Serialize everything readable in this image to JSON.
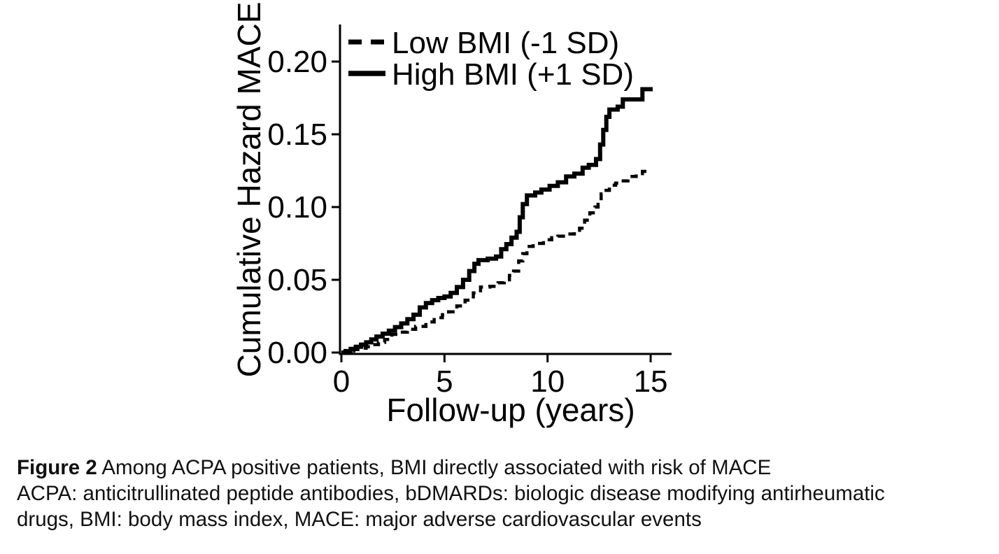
{
  "figure": {
    "caption_bold": "Figure 2",
    "caption_line1_rest": " Among ACPA positive patients, BMI directly associated with risk of MACE",
    "caption_line2": "ACPA: anticitrullinated peptide antibodies, bDMARDs: biologic disease modifying antirheumatic",
    "caption_line3": "drugs, BMI: body mass index, MACE: major adverse cardiovascular events"
  },
  "chart_data": {
    "type": "line",
    "subtype": "step-after cumulative hazard curves (Kaplan-Meier style)",
    "title": "",
    "xlabel": "Follow-up (years)",
    "ylabel": "Cumulative Hazard MACE",
    "xlim": [
      0,
      16
    ],
    "ylim": [
      0,
      0.21
    ],
    "x_ticks": [
      {
        "value": 0,
        "label": "0"
      },
      {
        "value": 5,
        "label": "5"
      },
      {
        "value": 10,
        "label": "10"
      },
      {
        "value": 15,
        "label": "15"
      }
    ],
    "y_ticks": [
      {
        "value": 0.0,
        "label": "0.00"
      },
      {
        "value": 0.05,
        "label": "0.05"
      },
      {
        "value": 0.1,
        "label": "0.10"
      },
      {
        "value": 0.15,
        "label": "0.15"
      },
      {
        "value": 0.2,
        "label": "0.20"
      }
    ],
    "grid": false,
    "legend_position": "top-left-inside",
    "line_color": "#000000",
    "series": [
      {
        "name": "Low BMI (-1 SD)",
        "style": "dashed",
        "points": [
          [
            0,
            0
          ],
          [
            0.3,
            0.001
          ],
          [
            0.6,
            0.002
          ],
          [
            0.9,
            0.003
          ],
          [
            1.2,
            0.004
          ],
          [
            1.5,
            0.0055
          ],
          [
            1.8,
            0.007
          ],
          [
            2.1,
            0.009
          ],
          [
            2.45,
            0.0125
          ],
          [
            2.8,
            0.014
          ],
          [
            3.2,
            0.016
          ],
          [
            3.6,
            0.018
          ],
          [
            4.1,
            0.021
          ],
          [
            4.5,
            0.024
          ],
          [
            4.9,
            0.026
          ],
          [
            5.2,
            0.028
          ],
          [
            5.6,
            0.032
          ],
          [
            6.0,
            0.036
          ],
          [
            6.4,
            0.041
          ],
          [
            6.75,
            0.045
          ],
          [
            7.2,
            0.0455
          ],
          [
            7.6,
            0.048
          ],
          [
            7.9,
            0.05
          ],
          [
            8.15,
            0.053
          ],
          [
            8.35,
            0.056
          ],
          [
            8.6,
            0.063
          ],
          [
            8.8,
            0.068
          ],
          [
            9.0,
            0.073
          ],
          [
            9.3,
            0.075
          ],
          [
            9.8,
            0.0775
          ],
          [
            10.2,
            0.079
          ],
          [
            10.5,
            0.08
          ],
          [
            10.9,
            0.0815
          ],
          [
            11.3,
            0.084
          ],
          [
            11.55,
            0.0855
          ],
          [
            11.8,
            0.091
          ],
          [
            12.05,
            0.096
          ],
          [
            12.3,
            0.1
          ],
          [
            12.45,
            0.104
          ],
          [
            12.6,
            0.109
          ],
          [
            12.75,
            0.1115
          ],
          [
            13.0,
            0.115
          ],
          [
            13.3,
            0.1165
          ],
          [
            13.55,
            0.118
          ],
          [
            13.9,
            0.121
          ],
          [
            14.3,
            0.123
          ],
          [
            14.6,
            0.1245
          ],
          [
            15.0,
            0.1255
          ]
        ]
      },
      {
        "name": "High BMI (+1 SD)",
        "style": "solid",
        "points": [
          [
            0,
            0
          ],
          [
            0.2,
            0.001
          ],
          [
            0.45,
            0.0025
          ],
          [
            0.7,
            0.004
          ],
          [
            0.95,
            0.0055
          ],
          [
            1.2,
            0.007
          ],
          [
            1.45,
            0.009
          ],
          [
            1.7,
            0.011
          ],
          [
            2.0,
            0.013
          ],
          [
            2.3,
            0.015
          ],
          [
            2.6,
            0.0175
          ],
          [
            2.9,
            0.02
          ],
          [
            3.2,
            0.023
          ],
          [
            3.5,
            0.026
          ],
          [
            3.8,
            0.031
          ],
          [
            4.1,
            0.034
          ],
          [
            4.4,
            0.036
          ],
          [
            4.7,
            0.0375
          ],
          [
            5.0,
            0.0385
          ],
          [
            5.3,
            0.041
          ],
          [
            5.6,
            0.045
          ],
          [
            5.9,
            0.05
          ],
          [
            6.2,
            0.056
          ],
          [
            6.45,
            0.061
          ],
          [
            6.65,
            0.0635
          ],
          [
            7.1,
            0.0645
          ],
          [
            7.5,
            0.066
          ],
          [
            7.75,
            0.071
          ],
          [
            8.0,
            0.0745
          ],
          [
            8.25,
            0.079
          ],
          [
            8.5,
            0.083
          ],
          [
            8.65,
            0.093
          ],
          [
            8.8,
            0.102
          ],
          [
            9.0,
            0.108
          ],
          [
            9.4,
            0.11
          ],
          [
            9.7,
            0.112
          ],
          [
            10.1,
            0.1145
          ],
          [
            10.5,
            0.117
          ],
          [
            10.9,
            0.121
          ],
          [
            11.3,
            0.123
          ],
          [
            11.7,
            0.127
          ],
          [
            12.0,
            0.129
          ],
          [
            12.35,
            0.133
          ],
          [
            12.55,
            0.143
          ],
          [
            12.7,
            0.153
          ],
          [
            12.85,
            0.162
          ],
          [
            13.0,
            0.167
          ],
          [
            13.4,
            0.169
          ],
          [
            13.65,
            0.174
          ],
          [
            14.6,
            0.181
          ],
          [
            15.1,
            0.181
          ]
        ]
      }
    ]
  }
}
